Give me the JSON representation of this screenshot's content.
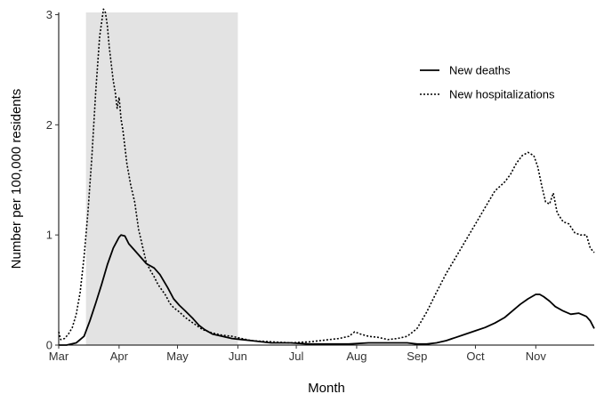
{
  "chart_data": {
    "type": "line",
    "title": "",
    "xlabel": "Month",
    "ylabel": "Number per 100,000 residents",
    "x_unit": "day-of-year (2020)",
    "x_ticks": [
      {
        "label": "Mar",
        "day": 61
      },
      {
        "label": "Apr",
        "day": 92
      },
      {
        "label": "May",
        "day": 122
      },
      {
        "label": "Jun",
        "day": 153
      },
      {
        "label": "Jul",
        "day": 183
      },
      {
        "label": "Aug",
        "day": 214
      },
      {
        "label": "Sep",
        "day": 245
      },
      {
        "label": "Oct",
        "day": 275
      },
      {
        "label": "Nov",
        "day": 306
      }
    ],
    "y_ticks": [
      0,
      1,
      2,
      3
    ],
    "xlim": [
      61,
      336
    ],
    "ylim": [
      0,
      3.02
    ],
    "grid": false,
    "legend_position": "top-right",
    "shaded_region": {
      "x_start": 75,
      "x_end": 153,
      "color": "#e3e3e3"
    },
    "series": [
      {
        "name": "New deaths",
        "style": "solid",
        "color": "#000000",
        "x": [
          61,
          65,
          70,
          74,
          77,
          80,
          83,
          86,
          89,
          92,
          93,
          95,
          97,
          100,
          103,
          106,
          110,
          113,
          117,
          120,
          123,
          126,
          130,
          133,
          136,
          140,
          145,
          150,
          155,
          160,
          170,
          180,
          190,
          200,
          210,
          220,
          230,
          240,
          245,
          250,
          255,
          260,
          265,
          270,
          275,
          280,
          285,
          290,
          294,
          298,
          302,
          306,
          308,
          310,
          313,
          316,
          320,
          324,
          328,
          332,
          334,
          336
        ],
        "y": [
          0,
          0,
          0.02,
          0.08,
          0.22,
          0.38,
          0.55,
          0.73,
          0.88,
          0.98,
          1.0,
          0.99,
          0.92,
          0.86,
          0.8,
          0.74,
          0.7,
          0.64,
          0.52,
          0.42,
          0.36,
          0.31,
          0.24,
          0.18,
          0.14,
          0.1,
          0.08,
          0.06,
          0.05,
          0.04,
          0.02,
          0.02,
          0.01,
          0.01,
          0.01,
          0.02,
          0.02,
          0.02,
          0.01,
          0.01,
          0.02,
          0.04,
          0.07,
          0.1,
          0.13,
          0.16,
          0.2,
          0.25,
          0.31,
          0.37,
          0.42,
          0.46,
          0.46,
          0.44,
          0.4,
          0.35,
          0.31,
          0.28,
          0.29,
          0.26,
          0.22,
          0.15
        ]
      },
      {
        "name": "New hospitalizations",
        "style": "dotted",
        "color": "#000000",
        "x": [
          61,
          62,
          64,
          66,
          68,
          70,
          72,
          74,
          76,
          78,
          80,
          82,
          84,
          85,
          86,
          87,
          88,
          89,
          90,
          91,
          92,
          93,
          94,
          95,
          96,
          98,
          100,
          102,
          104,
          106,
          108,
          110,
          112,
          114,
          116,
          118,
          120,
          123,
          126,
          130,
          135,
          140,
          145,
          150,
          155,
          160,
          170,
          180,
          190,
          200,
          205,
          210,
          213,
          216,
          220,
          225,
          230,
          235,
          240,
          245,
          250,
          255,
          260,
          265,
          270,
          275,
          280,
          285,
          290,
          293,
          296,
          299,
          302,
          305,
          307,
          309,
          311,
          313,
          315,
          317,
          320,
          323,
          326,
          329,
          332,
          334,
          336
        ],
        "y": [
          0.12,
          0.05,
          0.06,
          0.1,
          0.16,
          0.28,
          0.48,
          0.8,
          1.2,
          1.7,
          2.3,
          2.8,
          3.05,
          3.02,
          2.9,
          2.7,
          2.55,
          2.4,
          2.3,
          2.15,
          2.25,
          2.05,
          1.95,
          1.8,
          1.65,
          1.45,
          1.3,
          1.05,
          0.9,
          0.75,
          0.68,
          0.62,
          0.55,
          0.5,
          0.45,
          0.38,
          0.34,
          0.3,
          0.25,
          0.2,
          0.14,
          0.11,
          0.09,
          0.08,
          0.06,
          0.04,
          0.03,
          0.02,
          0.03,
          0.05,
          0.06,
          0.08,
          0.12,
          0.1,
          0.08,
          0.07,
          0.05,
          0.06,
          0.08,
          0.15,
          0.3,
          0.48,
          0.65,
          0.8,
          0.95,
          1.1,
          1.25,
          1.4,
          1.48,
          1.55,
          1.65,
          1.72,
          1.75,
          1.72,
          1.62,
          1.45,
          1.3,
          1.28,
          1.38,
          1.2,
          1.12,
          1.1,
          1.02,
          1.0,
          1.0,
          0.88,
          0.84
        ]
      }
    ]
  }
}
